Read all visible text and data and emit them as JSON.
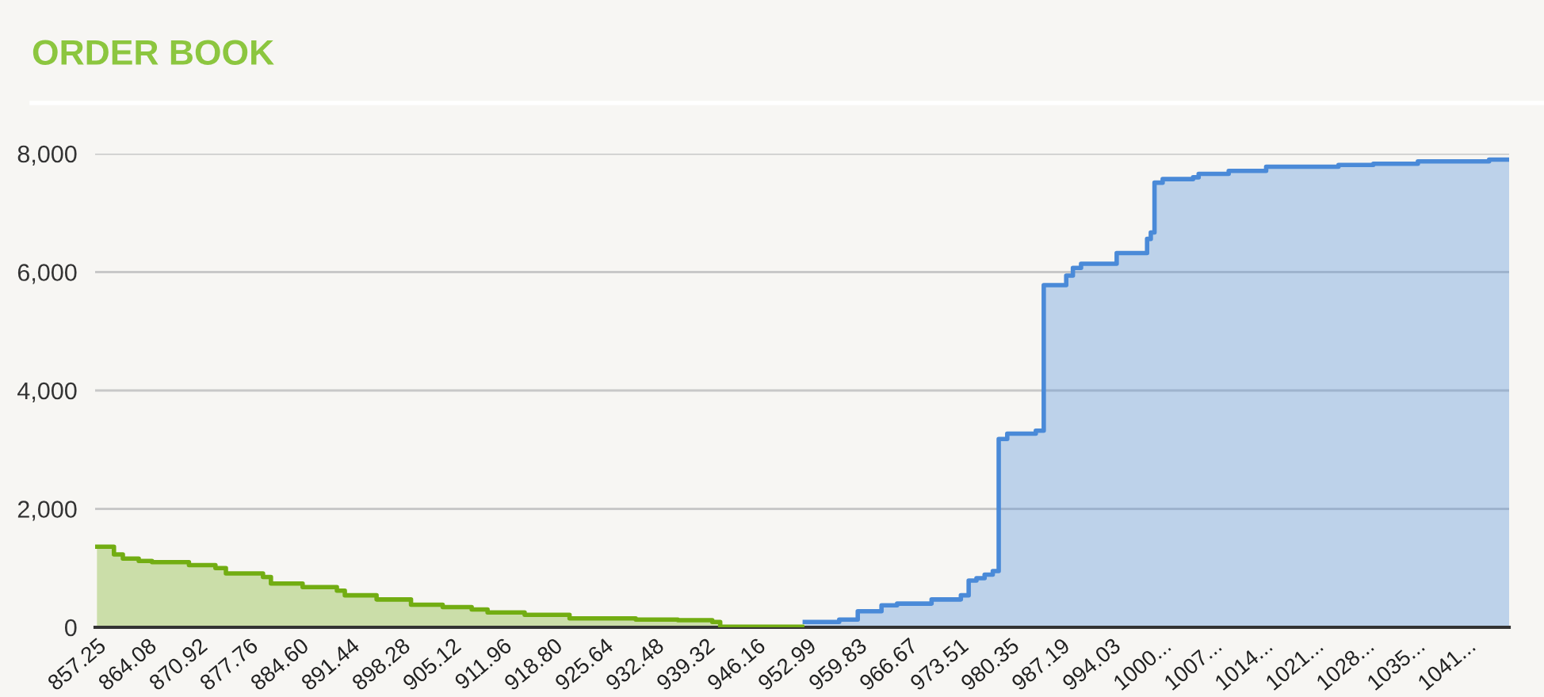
{
  "chart_data": {
    "type": "area",
    "title": "ORDER BOOK",
    "series": [
      {
        "color": "#72ad12",
        "x": [
          857.25,
          859.54,
          859.54,
          860.74,
          860.74,
          862.88,
          862.88,
          864.67,
          864.67,
          869.65,
          869.65,
          873.22,
          873.22,
          874.63,
          874.63,
          879.63,
          879.63,
          880.7,
          880.7,
          884.97,
          884.97,
          889.59,
          889.59,
          890.66,
          890.66,
          894.94,
          894.94,
          899.58,
          899.58,
          903.85,
          903.85,
          907.76,
          907.76,
          909.9,
          909.9,
          914.9,
          914.9,
          920.95,
          920.95,
          929.87,
          929.87,
          935.55,
          935.55,
          940.19,
          940.19,
          941.26,
          941.26,
          952.31
        ],
        "values": [
          1360,
          1360,
          1230,
          1230,
          1160,
          1160,
          1120,
          1120,
          1100,
          1100,
          1050,
          1050,
          1000,
          1000,
          910,
          910,
          850,
          850,
          740,
          740,
          680,
          680,
          620,
          620,
          540,
          540,
          470,
          470,
          380,
          380,
          340,
          340,
          300,
          300,
          250,
          250,
          210,
          210,
          150,
          150,
          130,
          130,
          120,
          120,
          90,
          90,
          10,
          10
        ]
      },
      {
        "color": "#4a8ad8",
        "x": [
          952.66,
          957.3,
          957.3,
          959.8,
          959.8,
          963.0,
          963.0,
          965.1,
          965.1,
          969.75,
          969.75,
          973.7,
          973.7,
          974.75,
          974.75,
          975.8,
          975.8,
          976.9,
          976.9,
          978.0,
          978.0,
          978.8,
          978.8,
          979.95,
          979.95,
          983.8,
          983.8,
          984.87,
          984.87,
          987.9,
          987.9,
          988.8,
          988.8,
          989.9,
          989.9,
          994.7,
          994.7,
          998.8,
          998.8,
          999.3,
          999.3,
          999.8,
          999.8,
          1000.9,
          1000.9,
          1005.0,
          1005.0,
          1005.75,
          1005.75,
          1009.8,
          1009.8,
          1014.85,
          1014.85,
          1024.6,
          1024.6,
          1029.3,
          1029.3,
          1035.3,
          1035.3,
          1044.9,
          1044.9,
          1047.6
        ],
        "values": [
          90,
          90,
          130,
          130,
          270,
          270,
          370,
          370,
          400,
          400,
          470,
          470,
          540,
          540,
          790,
          790,
          830,
          830,
          890,
          890,
          950,
          950,
          3180,
          3180,
          3270,
          3270,
          3320,
          3320,
          5780,
          5780,
          5940,
          5940,
          6070,
          6070,
          6140,
          6140,
          6320,
          6320,
          6560,
          6560,
          6670,
          6670,
          7510,
          7510,
          7570,
          7570,
          7600,
          7600,
          7660,
          7660,
          7710,
          7710,
          7780,
          7780,
          7810,
          7810,
          7830,
          7830,
          7870,
          7870,
          7900,
          7900
        ]
      }
    ],
    "xlim": [
      857.0,
      1047.6
    ],
    "xticks": [
      857.25,
      864.08,
      870.92,
      877.76,
      {
        "value": 884.6,
        "label": "884.60"
      },
      891.44,
      898.28,
      905.12,
      911.96,
      {
        "value": 918.8,
        "label": "918.80"
      },
      925.64,
      932.48,
      939.32,
      946.16,
      952.99,
      959.83,
      966.67,
      973.51,
      980.35,
      987.19,
      994.03,
      {
        "value": 1000.87,
        "label": "1000..."
      },
      {
        "value": 1007.71,
        "label": "1007..."
      },
      {
        "value": 1014.55,
        "label": "1014..."
      },
      {
        "value": 1021.39,
        "label": "1021..."
      },
      {
        "value": 1028.23,
        "label": "1028..."
      },
      {
        "value": 1035.07,
        "label": "1035..."
      },
      {
        "value": 1041.91,
        "label": "1041..."
      }
    ],
    "ylim": [
      0,
      8000
    ],
    "yticks": [
      0,
      {
        "value": 2000,
        "label": "2,000"
      },
      {
        "value": 4000,
        "label": "4,000"
      },
      {
        "value": 6000,
        "label": "6,000"
      },
      {
        "value": 8000,
        "label": "8,000"
      }
    ],
    "grid": "y"
  }
}
